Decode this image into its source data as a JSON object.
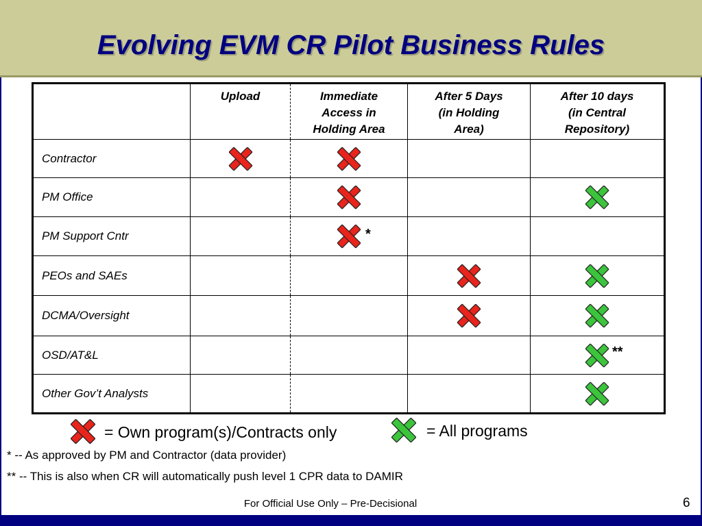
{
  "slide": {
    "title": "Evolving EVM CR Pilot Business Rules",
    "footer": "For Official Use Only – Pre-Decisional",
    "page_number": "6"
  },
  "colors": {
    "title_band": "#cccc99",
    "title_text": "#000080",
    "frame": "#000080",
    "own_mark": "#e8241c",
    "all_mark": "#3cc43c"
  },
  "table": {
    "columns": [
      "",
      "Upload",
      "Immediate Access in Holding Area",
      "After 5 Days (in Holding Area)",
      "After 10 days (in Central Repository)"
    ],
    "header_lines": {
      "upload": [
        "Upload"
      ],
      "immediate": [
        "Immediate",
        "Access in",
        "Holding Area"
      ],
      "after5": [
        "After 5 Days",
        "(in Holding",
        "Area)"
      ],
      "after10": [
        "After 10 days",
        "(in Central",
        "Repository)"
      ]
    },
    "rows": [
      {
        "label": "Contractor",
        "upload": "own",
        "immediate": "own",
        "after5": "",
        "after10": "",
        "note": ""
      },
      {
        "label": "PM Office",
        "upload": "",
        "immediate": "own",
        "after5": "",
        "after10": "all",
        "note": ""
      },
      {
        "label": "PM Support Cntr",
        "upload": "",
        "immediate": "own",
        "after5": "",
        "after10": "",
        "note": "*"
      },
      {
        "label": "PEOs and SAEs",
        "upload": "",
        "immediate": "",
        "after5": "own",
        "after10": "all",
        "note": ""
      },
      {
        "label": "DCMA/Oversight",
        "upload": "",
        "immediate": "",
        "after5": "own",
        "after10": "all",
        "note": ""
      },
      {
        "label": "OSD/AT&L",
        "upload": "",
        "immediate": "",
        "after5": "",
        "after10": "all",
        "note": "**"
      },
      {
        "label": "Other Gov’t Analysts",
        "upload": "",
        "immediate": "",
        "after5": "",
        "after10": "all",
        "note": ""
      }
    ]
  },
  "legend": {
    "own": {
      "icon": "red-x-icon",
      "text": "= Own program(s)/Contracts only"
    },
    "all": {
      "icon": "green-x-icon",
      "text": "= All programs"
    }
  },
  "footnotes": [
    "* -- As approved by PM and Contractor (data provider)",
    "** -- This is also when CR will automatically push level 1 CPR data to DAMIR"
  ]
}
